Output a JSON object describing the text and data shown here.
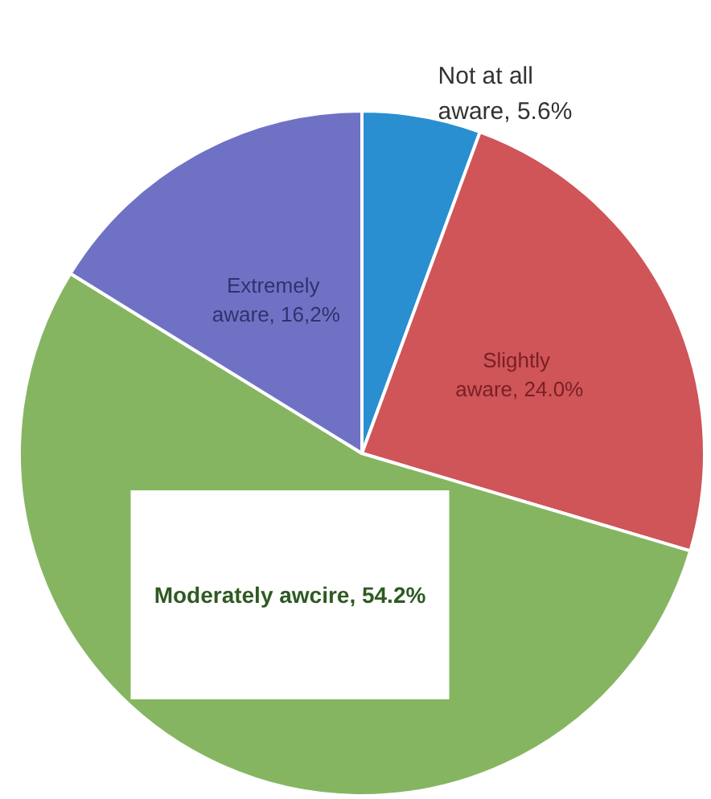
{
  "chart_data": {
    "type": "pie",
    "categories": [
      "Not at all aware",
      "Slightly aware",
      "Moderately awcire",
      "Extremely aware"
    ],
    "values": [
      5.6,
      24.0,
      54.2,
      16.2
    ],
    "colors": [
      "#2a8fd0",
      "#cf5558",
      "#86b562",
      "#6f72c4"
    ],
    "value_labels": [
      "5.6%",
      "24.0%",
      "54.2%",
      "16,2%"
    ],
    "legend": false
  }
}
